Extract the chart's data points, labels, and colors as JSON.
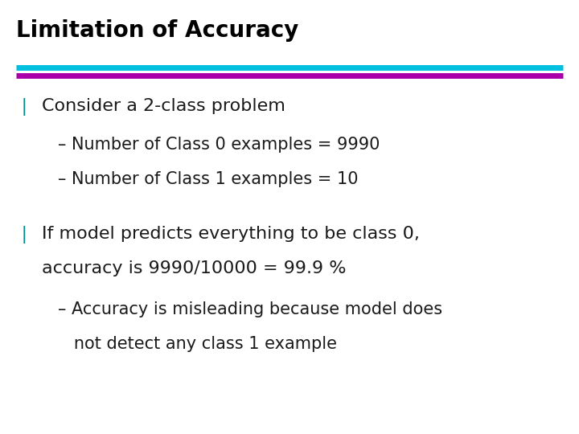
{
  "title": "Limitation of Accuracy",
  "title_color": "#000000",
  "title_fontsize": 20,
  "title_bold": true,
  "bg_color": "#ffffff",
  "line1_color": "#00BFDF",
  "line2_color": "#AA00AA",
  "bullet_color": "#008B8B",
  "bullet_char": "❘",
  "text1_main": "Consider a 2-class problem",
  "text1_sub1": "– Number of Class 0 examples = 9990",
  "text1_sub2": "– Number of Class 1 examples = 10",
  "text2_main1": "If model predicts everything to be class 0,",
  "text2_main2": "accuracy is 9990/10000 = 99.9 %",
  "text2_sub1": "– Accuracy is misleading because model does",
  "text2_sub2": "   not detect any class 1 example",
  "main_fontsize": 16,
  "sub_fontsize": 15,
  "text_color": "#1a1a1a"
}
